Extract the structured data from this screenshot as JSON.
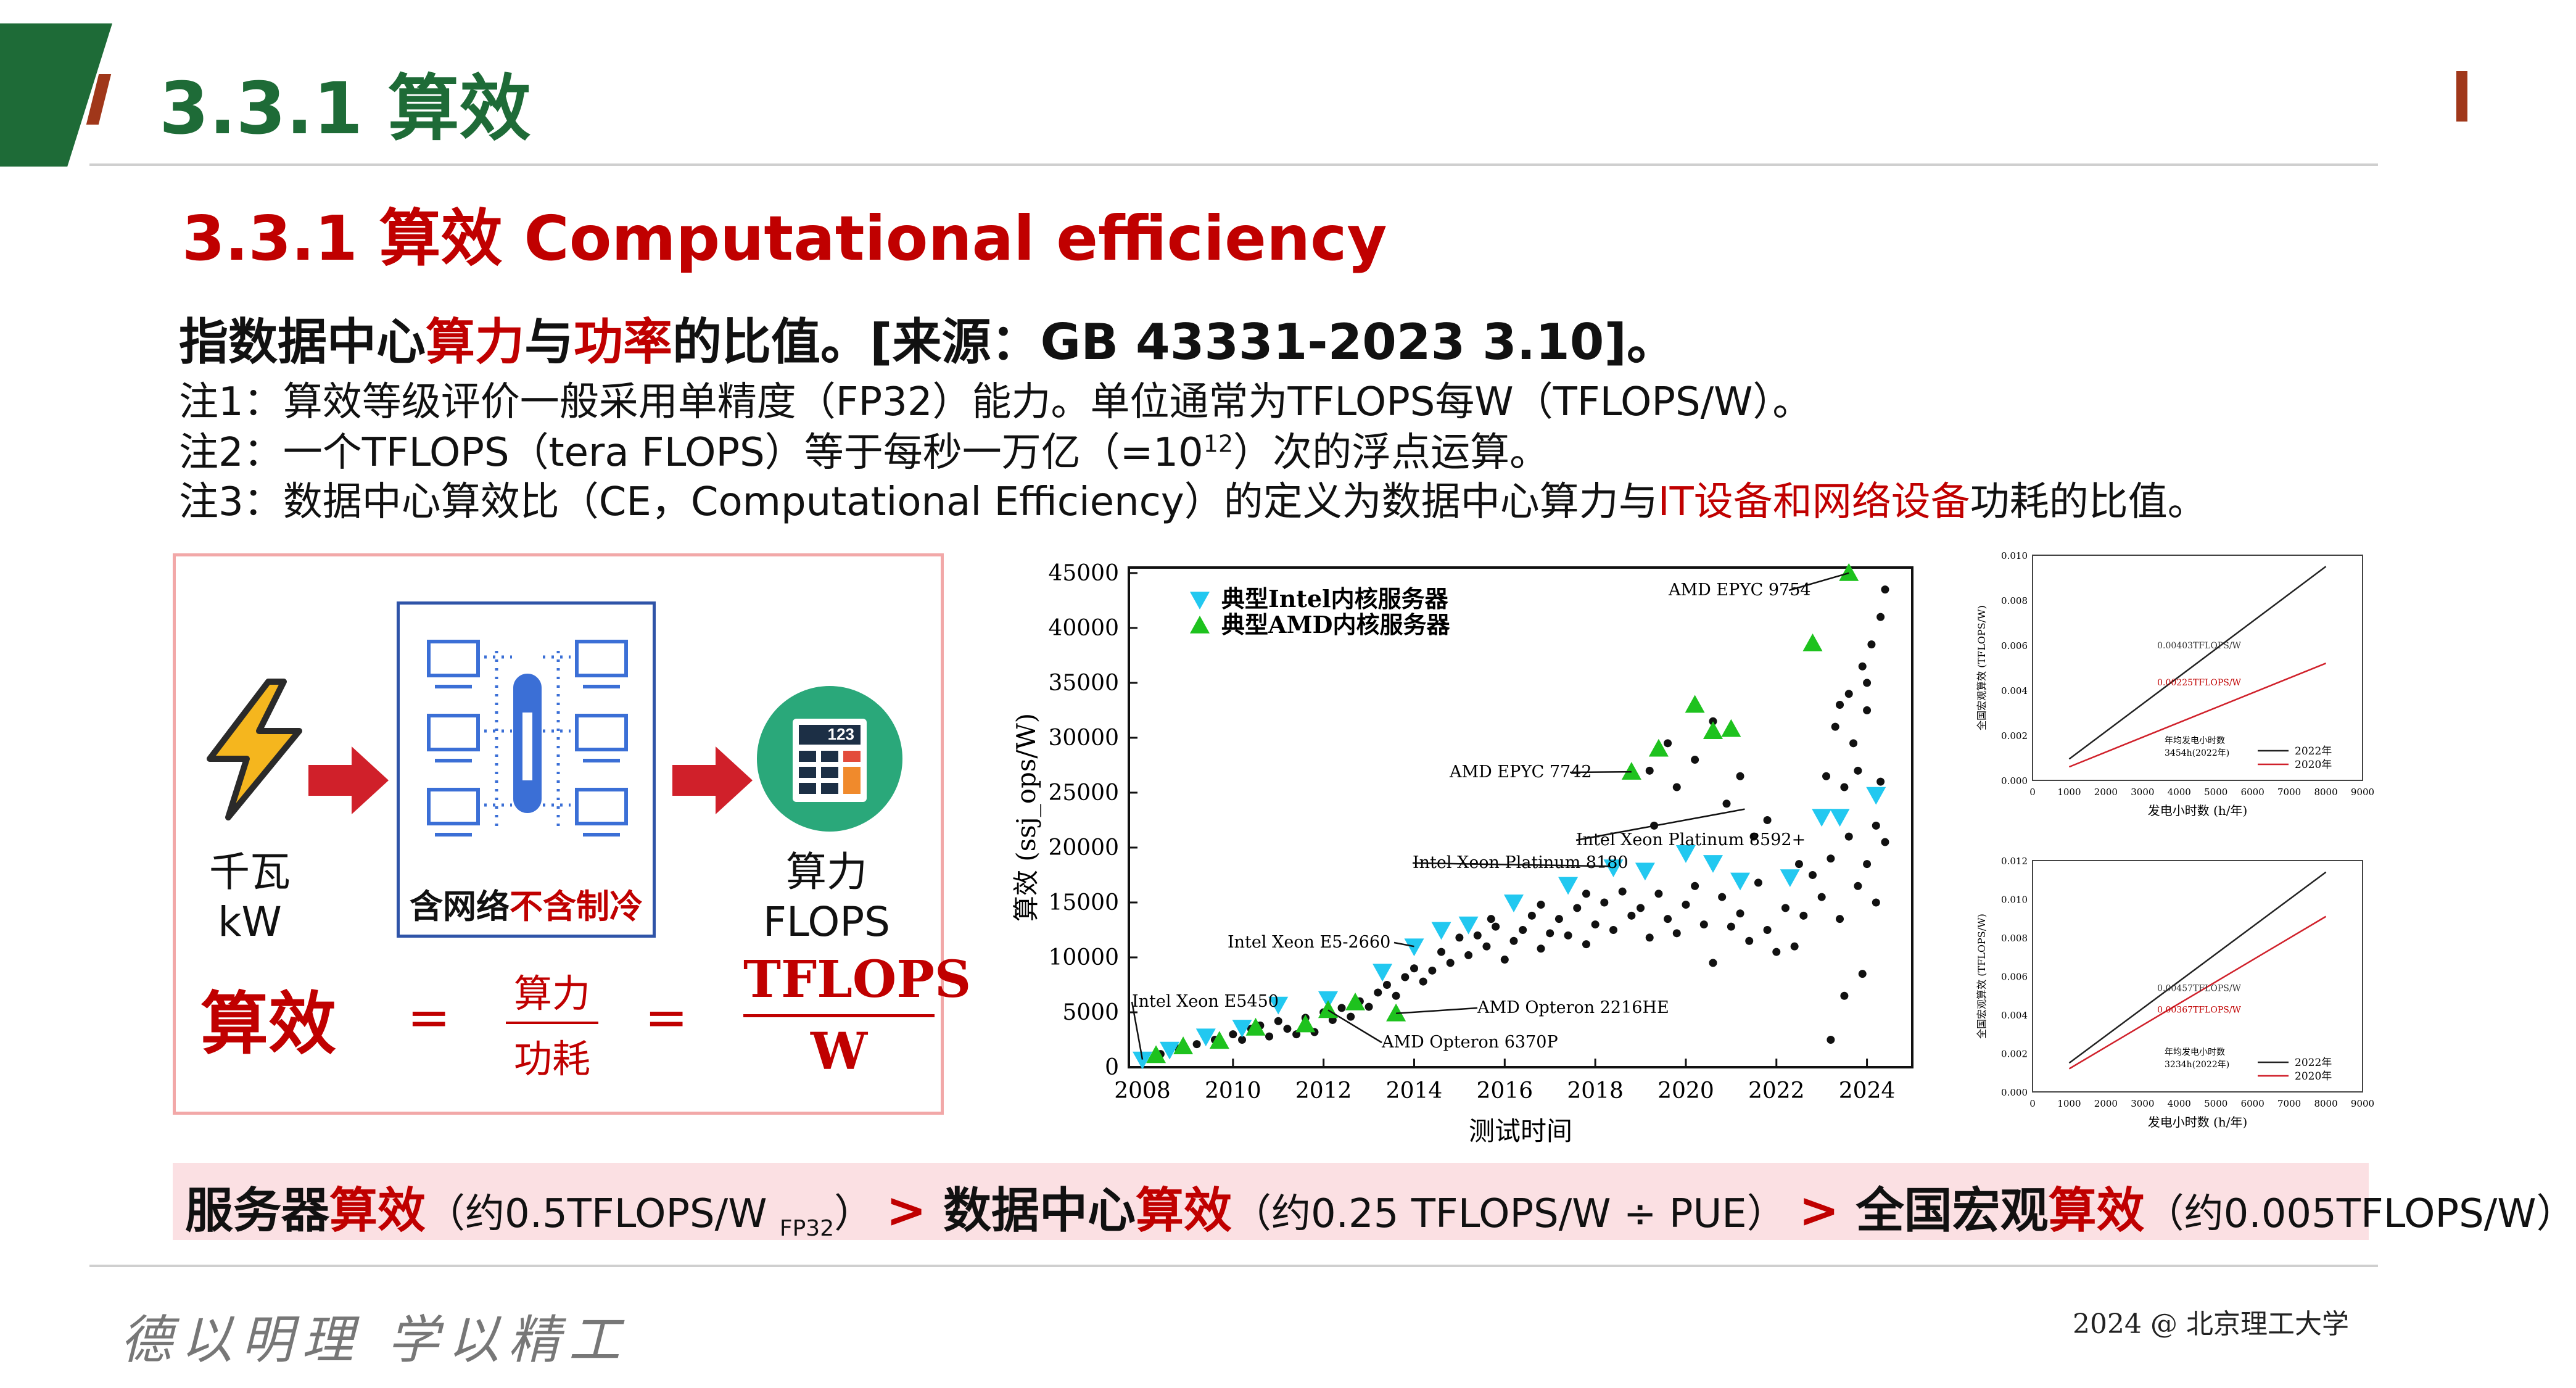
{
  "header": {
    "title": "3.3.1  算效"
  },
  "subtitle": "3.3.1 算效  Computational efficiency",
  "definition": {
    "p1": "指数据中心",
    "p2": "算力",
    "p3": "与",
    "p4": "功率",
    "p5": "的比值。[来源：GB 43331-2023  3.10]。"
  },
  "notes": {
    "n1": "注1：算效等级评价一般采用单精度（FP32）能力。单位通常为TFLOPS每W（TFLOPS/W）。",
    "n2a": "注2：一个TFLOPS（tera FLOPS）等于每秒一万亿（=10",
    "n2sup": "12",
    "n2b": "）次的浮点运算。",
    "n3a": "注3：数据中心算效比（CE，Computational Efficiency）的定义为数据中心算力与",
    "n3red": "IT设备和网络设备",
    "n3b": "功耗的比值。"
  },
  "diagram": {
    "power_label_1": "千瓦",
    "power_label_2": "kW",
    "center_label_1": "含网络",
    "center_label_2": "不含制冷",
    "calc_digits": "123",
    "compute_label_1": "算力",
    "compute_label_2": "FLOPS",
    "formula_lhs": "算效",
    "eq1": "=",
    "frac1_num": "算力",
    "frac1_den": "功耗",
    "eq2": "=",
    "frac2_num": "TFLOPS",
    "frac2_den": "W",
    "colors": {
      "arrow": "#d0202a",
      "box_border": "#2f54a8",
      "calc_green": "#2aa87a",
      "bolt": "#f5b61e"
    }
  },
  "chart_data": [
    {
      "type": "scatter",
      "xlabel": "测试时间",
      "ylabel": "算效 (ssj_ops/W)",
      "xlim": [
        2007.7,
        2025.0
      ],
      "ylim": [
        0,
        45500
      ],
      "xticks": [
        2008,
        2010,
        2012,
        2014,
        2016,
        2018,
        2020,
        2022,
        2024
      ],
      "yticks": [
        0,
        5000,
        10000,
        15000,
        20000,
        25000,
        30000,
        35000,
        40000,
        45000
      ],
      "legend": [
        "典型Intel内核服务器",
        "典型AMD内核服务器"
      ],
      "legend_position": "top-left",
      "series": [
        {
          "name": "典型Intel内核服务器",
          "marker": "triangle-down",
          "color": "#22c8f0",
          "points": [
            [
              2008.0,
              700
            ],
            [
              2008.6,
              1600
            ],
            [
              2009.4,
              2800
            ],
            [
              2010.2,
              3600
            ],
            [
              2011.0,
              5700
            ],
            [
              2012.1,
              6200
            ],
            [
              2013.3,
              8700
            ],
            [
              2014.0,
              11000
            ],
            [
              2014.6,
              12500
            ],
            [
              2015.2,
              13000
            ],
            [
              2016.2,
              15000
            ],
            [
              2017.4,
              16600
            ],
            [
              2018.4,
              18200
            ],
            [
              2019.1,
              17900
            ],
            [
              2020.0,
              19500
            ],
            [
              2020.6,
              18600
            ],
            [
              2021.2,
              17000
            ],
            [
              2022.3,
              17300
            ],
            [
              2023.0,
              22800
            ],
            [
              2023.4,
              22800
            ],
            [
              2024.2,
              24800
            ]
          ]
        },
        {
          "name": "典型AMD内核服务器",
          "marker": "triangle-up",
          "color": "#1ec21e",
          "points": [
            [
              2008.3,
              1100
            ],
            [
              2008.9,
              1900
            ],
            [
              2009.7,
              2400
            ],
            [
              2010.5,
              3600
            ],
            [
              2011.6,
              3900
            ],
            [
              2012.1,
              5200
            ],
            [
              2013.6,
              4900
            ],
            [
              2012.7,
              5900
            ],
            [
              2018.8,
              26900
            ],
            [
              2019.4,
              29000
            ],
            [
              2020.2,
              33000
            ],
            [
              2020.6,
              30600
            ],
            [
              2022.8,
              38600
            ],
            [
              2023.6,
              45000
            ],
            [
              2021.0,
              30800
            ]
          ]
        },
        {
          "name": "",
          "marker": "dot",
          "color": "#111111",
          "points": [
            [
              2008.4,
              1200
            ],
            [
              2008.8,
              1700
            ],
            [
              2009.2,
              2100
            ],
            [
              2009.6,
              2500
            ],
            [
              2010.0,
              3000
            ],
            [
              2010.2,
              2500
            ],
            [
              2010.4,
              3500
            ],
            [
              2010.6,
              3800
            ],
            [
              2010.8,
              2800
            ],
            [
              2011.0,
              4200
            ],
            [
              2011.2,
              3500
            ],
            [
              2011.4,
              3000
            ],
            [
              2011.6,
              4500
            ],
            [
              2011.8,
              3200
            ],
            [
              2012.0,
              5000
            ],
            [
              2012.2,
              4300
            ],
            [
              2012.4,
              5400
            ],
            [
              2012.6,
              4600
            ],
            [
              2012.8,
              6000
            ],
            [
              2013.0,
              5500
            ],
            [
              2013.2,
              6800
            ],
            [
              2013.4,
              7500
            ],
            [
              2013.6,
              6500
            ],
            [
              2013.8,
              8200
            ],
            [
              2014.0,
              9000
            ],
            [
              2014.2,
              7800
            ],
            [
              2014.4,
              8800
            ],
            [
              2014.6,
              10500
            ],
            [
              2014.8,
              9500
            ],
            [
              2015.0,
              11800
            ],
            [
              2015.2,
              10200
            ],
            [
              2015.4,
              12000
            ],
            [
              2015.6,
              11000
            ],
            [
              2015.8,
              12800
            ],
            [
              2016.0,
              9800
            ],
            [
              2016.2,
              11500
            ],
            [
              2016.4,
              12500
            ],
            [
              2016.6,
              13800
            ],
            [
              2016.8,
              10800
            ],
            [
              2017.0,
              12200
            ],
            [
              2017.2,
              13500
            ],
            [
              2017.4,
              12000
            ],
            [
              2017.6,
              14500
            ],
            [
              2017.8,
              11200
            ],
            [
              2018.0,
              13000
            ],
            [
              2018.2,
              15000
            ],
            [
              2018.4,
              12500
            ],
            [
              2018.6,
              16000
            ],
            [
              2018.8,
              13800
            ],
            [
              2019.0,
              14500
            ],
            [
              2019.2,
              11800
            ],
            [
              2019.4,
              15800
            ],
            [
              2019.6,
              13500
            ],
            [
              2019.8,
              12200
            ],
            [
              2020.0,
              14800
            ],
            [
              2020.2,
              16500
            ],
            [
              2020.4,
              13000
            ],
            [
              2020.6,
              9500
            ],
            [
              2020.8,
              15500
            ],
            [
              2021.0,
              12800
            ],
            [
              2021.2,
              14000
            ],
            [
              2021.4,
              11500
            ],
            [
              2021.6,
              16800
            ],
            [
              2021.8,
              12500
            ],
            [
              2022.0,
              10500
            ],
            [
              2022.2,
              14500
            ],
            [
              2022.4,
              11000
            ],
            [
              2022.6,
              13800
            ],
            [
              2022.8,
              17500
            ],
            [
              2023.0,
              15500
            ],
            [
              2023.2,
              19000
            ],
            [
              2023.4,
              13500
            ],
            [
              2023.6,
              21000
            ],
            [
              2023.8,
              16500
            ],
            [
              2024.0,
              18500
            ],
            [
              2024.2,
              15000
            ],
            [
              2024.4,
              20500
            ],
            [
              2023.3,
              31000
            ],
            [
              2023.6,
              34000
            ],
            [
              2023.9,
              36500
            ],
            [
              2024.1,
              38500
            ],
            [
              2024.3,
              41000
            ],
            [
              2024.4,
              43500
            ],
            [
              2023.7,
              29500
            ],
            [
              2024.0,
              32500
            ],
            [
              2019.2,
              27000
            ],
            [
              2019.6,
              29500
            ],
            [
              2020.2,
              28000
            ],
            [
              2020.6,
              31500
            ],
            [
              2021.2,
              26500
            ],
            [
              2019.8,
              25500
            ],
            [
              2023.5,
              6500
            ],
            [
              2023.9,
              8500
            ],
            [
              2023.2,
              2500
            ],
            [
              2023.5,
              25500
            ],
            [
              2024.2,
              22000
            ],
            [
              2023.8,
              27000
            ],
            [
              2021.8,
              22500
            ],
            [
              2021.5,
              21000
            ],
            [
              2020.9,
              24000
            ],
            [
              2019.3,
              22000
            ],
            [
              2016.8,
              14800
            ],
            [
              2015.7,
              13500
            ],
            [
              2017.8,
              15800
            ],
            [
              2022.5,
              18500
            ],
            [
              2024.3,
              26000
            ],
            [
              2023.1,
              26500
            ],
            [
              2024.0,
              35000
            ],
            [
              2023.4,
              33000
            ]
          ]
        }
      ],
      "annotations": [
        "AMD EPYC 9754",
        "AMD EPYC 7742",
        "Intel Xeon Platinum 8592+",
        "Intel Xeon Platinum 8180",
        "Intel Xeon E5-2660",
        "Intel Xeon E5450",
        "AMD Opteron 2216HE",
        "AMD Opteron 6370P"
      ]
    },
    {
      "type": "line",
      "xlabel": "发电小时数 (h/年)",
      "ylabel": "全国宏观算效 (TFLOPS/W)",
      "xlim": [
        0,
        9000
      ],
      "ylim": [
        0,
        0.01
      ],
      "xticks": [
        0,
        1000,
        2000,
        3000,
        4000,
        5000,
        6000,
        7000,
        8000,
        9000
      ],
      "yticks": [
        0,
        0.002,
        0.004,
        0.006,
        0.008,
        0.01
      ],
      "series": [
        {
          "name": "2022年",
          "color": "#222222",
          "x": [
            1000,
            8000
          ],
          "y": [
            0.00095,
            0.0095
          ]
        },
        {
          "name": "2020年",
          "color": "#d0202a",
          "x": [
            1000,
            8000
          ],
          "y": [
            0.0006,
            0.0052
          ]
        }
      ],
      "annotations": [
        "0.00403TFLOPS/W",
        "0.00225TFLOPS/W",
        "年均发电小时数",
        "3454h(2022年)"
      ],
      "legend_position": "bottom-right"
    },
    {
      "type": "line",
      "xlabel": "发电小时数 (h/年)",
      "ylabel": "全国宏观算效 (TFLOPS/W)",
      "xlim": [
        0,
        9000
      ],
      "ylim": [
        0,
        0.012
      ],
      "xticks": [
        0,
        1000,
        2000,
        3000,
        4000,
        5000,
        6000,
        7000,
        8000,
        9000
      ],
      "yticks": [
        0,
        0.002,
        0.004,
        0.006,
        0.008,
        0.01,
        0.012
      ],
      "series": [
        {
          "name": "2022年",
          "color": "#222222",
          "x": [
            1000,
            8000
          ],
          "y": [
            0.0015,
            0.0114
          ]
        },
        {
          "name": "2020年",
          "color": "#d0202a",
          "x": [
            1000,
            8000
          ],
          "y": [
            0.0012,
            0.0091
          ]
        }
      ],
      "annotations": [
        "0.00457TFLOPS/W",
        "0.00367TFLOPS/W",
        "年均发电小时数",
        "3234h(2022年)"
      ],
      "legend_position": "bottom-right"
    }
  ],
  "bottom": {
    "a": "服务器",
    "a_red": "算效",
    "a_note": "（约0.5TFLOPS/W ",
    "a_sub": "FP32",
    "a_note2": "）",
    "gt1": " > ",
    "b": "数据中心",
    "b_red": "算效",
    "b_note": "（约0.25 TFLOPS/W ÷ PUE）",
    "gt2": " > ",
    "c": " 全国宏观",
    "c_red": "算效",
    "c_note": "（约0.005TFLOPS/W）"
  },
  "footer": {
    "motto": "德以明理  学以精工",
    "copyright": "2024 @ 北京理工大学"
  }
}
